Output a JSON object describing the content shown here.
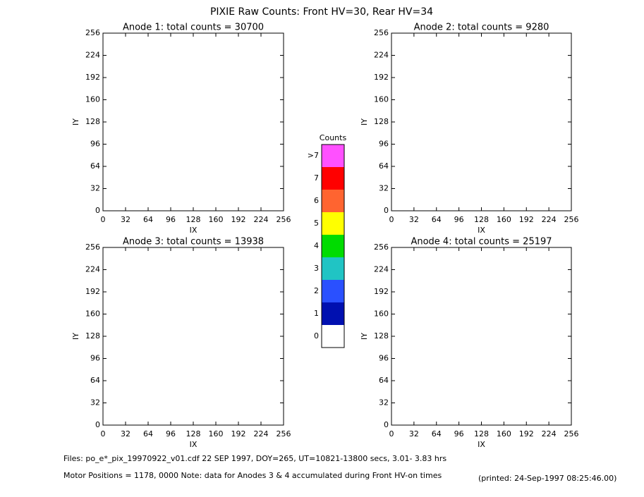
{
  "title": "PIXIE Raw Counts:  Front HV=30, Rear HV=34",
  "chart_data": [
    {
      "type": "heatmap",
      "title": "Anode 1: total counts = 30700",
      "x_label": "IX",
      "y_label": "IY",
      "xlim": [
        0,
        256
      ],
      "ylim": [
        0,
        256
      ],
      "xticks": [
        0,
        32,
        64,
        96,
        128,
        160,
        192,
        224,
        256
      ],
      "yticks": [
        0,
        32,
        64,
        96,
        128,
        160,
        192,
        224,
        256
      ]
    },
    {
      "type": "heatmap",
      "title": "Anode 2: total counts = 9280",
      "x_label": "IX",
      "y_label": "IY",
      "xlim": [
        0,
        256
      ],
      "ylim": [
        0,
        256
      ],
      "xticks": [
        0,
        32,
        64,
        96,
        128,
        160,
        192,
        224,
        256
      ],
      "yticks": [
        0,
        32,
        64,
        96,
        128,
        160,
        192,
        224,
        256
      ]
    },
    {
      "type": "heatmap",
      "title": "Anode 3: total counts = 13938",
      "x_label": "IX",
      "y_label": "IY",
      "xlim": [
        0,
        256
      ],
      "ylim": [
        0,
        256
      ],
      "xticks": [
        0,
        32,
        64,
        96,
        128,
        160,
        192,
        224,
        256
      ],
      "yticks": [
        0,
        32,
        64,
        96,
        128,
        160,
        192,
        224,
        256
      ]
    },
    {
      "type": "heatmap",
      "title": "Anode 4: total counts = 25197",
      "x_label": "IX",
      "y_label": "IY",
      "xlim": [
        0,
        256
      ],
      "ylim": [
        0,
        256
      ],
      "xticks": [
        0,
        32,
        64,
        96,
        128,
        160,
        192,
        224,
        256
      ],
      "yticks": [
        0,
        32,
        64,
        96,
        128,
        160,
        192,
        224,
        256
      ]
    }
  ],
  "colorbar": {
    "title": "Counts",
    "labels": [
      "0",
      "1",
      "2",
      "3",
      "4",
      "5",
      "6",
      "7",
      ">7"
    ],
    "colors": [
      "#ffffff",
      "#0010b0",
      "#2a50ff",
      "#20c4c4",
      "#00dc00",
      "#ffff00",
      "#ff6430",
      "#ff0000",
      "#ff50ff"
    ]
  },
  "footer": {
    "files": "Files: po_e*_pix_19970922_v01.cdf    22 SEP 1997, DOY=265, UT=10821-13800 secs,  3.01- 3.83 hrs",
    "motor": "Motor Positions = 1178, 0000    Note: data for Anodes 3 & 4 accumulated during Front HV-on times",
    "printed": "(printed: 24-Sep-1997 08:25:46.00)"
  }
}
